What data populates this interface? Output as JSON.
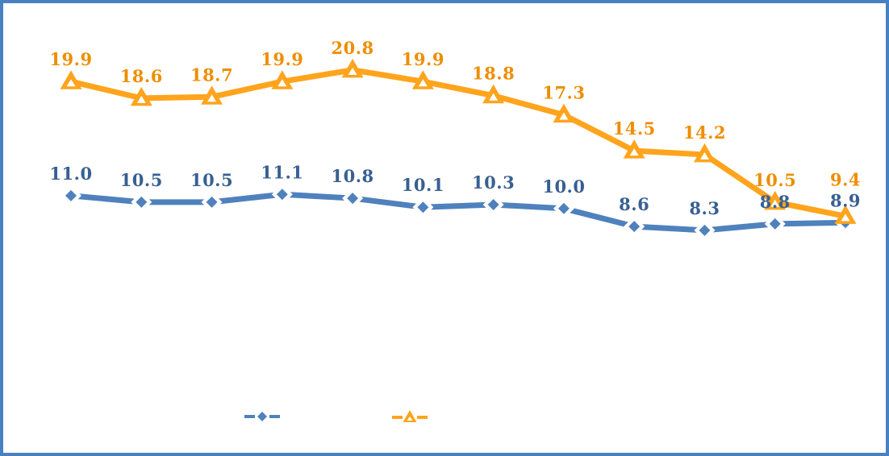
{
  "page": {
    "title": "",
    "background_color": "#FFFFFF",
    "frame_border_color": "#4781C1"
  },
  "chart_data": {
    "type": "line",
    "title": "",
    "xlabel": "",
    "ylabel": "",
    "x_axis_visible": false,
    "y_axis_visible": false,
    "gridlines": false,
    "data_labels_visible": true,
    "point_count": 12,
    "ylim": [
      0,
      25
    ],
    "series": [
      {
        "name": "blue-diamond-series",
        "marker": "diamond",
        "line_color": "#4F81BD",
        "marker_fill": "#4F81BD",
        "marker_border": "#FFFFFF",
        "label_color": "#376092",
        "values": [
          11.0,
          10.5,
          10.5,
          11.1,
          10.8,
          10.1,
          10.3,
          10.0,
          8.6,
          8.3,
          8.8,
          8.9
        ]
      },
      {
        "name": "orange-triangle-series",
        "marker": "triangle",
        "line_color": "#FFA41C",
        "marker_fill": "#FFA41C",
        "marker_border": "#FFFFFF",
        "label_color": "#EE8E00",
        "values": [
          19.9,
          18.6,
          18.7,
          19.9,
          20.8,
          19.9,
          18.8,
          17.3,
          14.5,
          14.2,
          10.5,
          9.4
        ]
      }
    ],
    "legend": {
      "position": "bottom",
      "entries": [
        {
          "marker": "diamond",
          "color": "#4F81BD",
          "label": ""
        },
        {
          "marker": "triangle",
          "color": "#FFA41C",
          "label": ""
        }
      ]
    }
  }
}
